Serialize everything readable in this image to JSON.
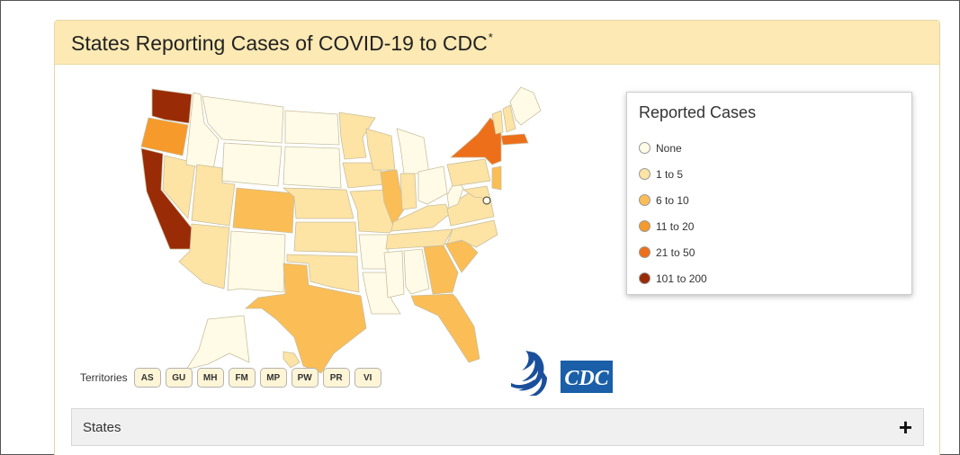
{
  "header": {
    "title": "States Reporting Cases of COVID-19 to CDC",
    "footnote_mark": "*"
  },
  "legend": {
    "title": "Reported Cases",
    "items": [
      {
        "label": "None",
        "color": "#fffbe6"
      },
      {
        "label": "1 to 5",
        "color": "#fde3a4"
      },
      {
        "label": "6 to 10",
        "color": "#fbbd55"
      },
      {
        "label": "11 to 20",
        "color": "#f69a2b"
      },
      {
        "label": "21 to 50",
        "color": "#ee6f1a"
      },
      {
        "label": "101 to 200",
        "color": "#9a2b07"
      }
    ]
  },
  "territories": {
    "label": "Territories",
    "buttons": [
      "AS",
      "GU",
      "MH",
      "FM",
      "MP",
      "PW",
      "PR",
      "VI"
    ]
  },
  "states_section": {
    "label": "States",
    "toggle": "+"
  },
  "map": {
    "state_colors": {
      "WA": "#9a2b07",
      "OR": "#f69a2b",
      "CA": "#9a2b07",
      "NV": "#fde3a4",
      "ID": "#fffbe6",
      "MT": "#fffbe6",
      "WY": "#fffbe6",
      "UT": "#fde3a4",
      "AZ": "#fde3a4",
      "CO": "#fbbd55",
      "NM": "#fffbe6",
      "ND": "#fffbe6",
      "SD": "#fffbe6",
      "NE": "#fde3a4",
      "KS": "#fde3a4",
      "OK": "#fde3a4",
      "TX": "#fbbd55",
      "MN": "#fde3a4",
      "IA": "#fde3a4",
      "MO": "#fde3a4",
      "AR": "#fffbe6",
      "LA": "#fffbe6",
      "WI": "#fde3a4",
      "IL": "#fbbd55",
      "MI": "#fffbe6",
      "IN": "#fde3a4",
      "OH": "#fffbe6",
      "KY": "#fde3a4",
      "TN": "#fde3a4",
      "MS": "#fffbe6",
      "AL": "#fffbe6",
      "GA": "#fbbd55",
      "FL": "#fbbd55",
      "SC": "#fbbd55",
      "NC": "#fde3a4",
      "VA": "#fde3a4",
      "WV": "#fffbe6",
      "PA": "#fde3a4",
      "NY": "#ee6f1a",
      "VT": "#fde3a4",
      "NH": "#fde3a4",
      "ME": "#fffbe6",
      "MA": "#ee6f1a",
      "NJ": "#fbbd55",
      "MD": "#fde3a4",
      "AK": "#fffbe6",
      "HI": "#fde3a4"
    }
  }
}
